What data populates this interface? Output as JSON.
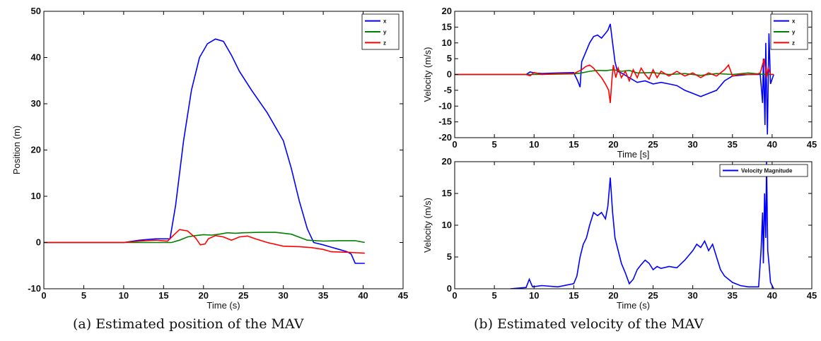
{
  "captions": {
    "a": "(a) Estimated position of the MAV",
    "b": "(b) Estimated velocity of the MAV"
  },
  "colors": {
    "x": "#0000ff",
    "y": "#008000",
    "z": "#ff0000",
    "magnitude": "#0000ff"
  },
  "chart_data": [
    {
      "id": "position",
      "type": "line",
      "xlabel": "Time (s)",
      "ylabel": "Position (m)",
      "xlim": [
        0,
        45
      ],
      "ylim": [
        -10,
        50
      ],
      "xticks": [
        0,
        5,
        10,
        15,
        20,
        25,
        30,
        35,
        40,
        45
      ],
      "yticks": [
        -10,
        0,
        10,
        20,
        30,
        40,
        50
      ],
      "legend": "top-right",
      "grid": false,
      "series": [
        {
          "name": "x",
          "color": "#0000ff",
          "points": [
            [
              0,
              0
            ],
            [
              10,
              0
            ],
            [
              12,
              0.5
            ],
            [
              14,
              0.8
            ],
            [
              15.8,
              0.8
            ],
            [
              16.5,
              8
            ],
            [
              17.5,
              22
            ],
            [
              18.5,
              33
            ],
            [
              19.5,
              40
            ],
            [
              20.5,
              43
            ],
            [
              21.5,
              44
            ],
            [
              22.5,
              43.5
            ],
            [
              23.5,
              40.5
            ],
            [
              24.5,
              37
            ],
            [
              26,
              33
            ],
            [
              28,
              28
            ],
            [
              30,
              22
            ],
            [
              31,
              16
            ],
            [
              32,
              9
            ],
            [
              33,
              3
            ],
            [
              33.8,
              0
            ],
            [
              35,
              -0.5
            ],
            [
              36,
              -1
            ],
            [
              37,
              -1.5
            ],
            [
              38,
              -2
            ],
            [
              38.5,
              -2.5
            ],
            [
              39,
              -4.5
            ],
            [
              40.2,
              -4.5
            ]
          ]
        },
        {
          "name": "y",
          "color": "#008000",
          "points": [
            [
              0,
              0
            ],
            [
              10,
              0
            ],
            [
              16,
              0
            ],
            [
              17,
              0.5
            ],
            [
              18,
              1.2
            ],
            [
              19,
              1.5
            ],
            [
              20,
              1.7
            ],
            [
              21,
              1.6
            ],
            [
              22,
              1.8
            ],
            [
              23,
              2.1
            ],
            [
              24,
              2
            ],
            [
              25,
              2.1
            ],
            [
              27,
              2.2
            ],
            [
              29,
              2.2
            ],
            [
              31,
              1.8
            ],
            [
              33,
              0.5
            ],
            [
              35,
              0.3
            ],
            [
              37,
              0.4
            ],
            [
              39,
              0.4
            ],
            [
              40.2,
              0
            ]
          ]
        },
        {
          "name": "z",
          "color": "#ff0000",
          "points": [
            [
              0,
              0
            ],
            [
              10,
              0
            ],
            [
              12,
              0.3
            ],
            [
              14,
              0.5
            ],
            [
              15.5,
              0.3
            ],
            [
              16.2,
              1.5
            ],
            [
              17,
              2.8
            ],
            [
              18,
              2.5
            ],
            [
              19,
              1
            ],
            [
              19.6,
              -0.5
            ],
            [
              20.2,
              -0.3
            ],
            [
              20.6,
              0.8
            ],
            [
              21.5,
              1.5
            ],
            [
              22.5,
              1.2
            ],
            [
              23.5,
              0.5
            ],
            [
              24.5,
              1.2
            ],
            [
              25.5,
              1.4
            ],
            [
              26.5,
              0.8
            ],
            [
              28,
              0
            ],
            [
              30,
              -0.8
            ],
            [
              32,
              -0.9
            ],
            [
              33.5,
              -1.1
            ],
            [
              35,
              -1.5
            ],
            [
              36,
              -2
            ],
            [
              38,
              -2.1
            ],
            [
              40.2,
              -2.3
            ]
          ]
        }
      ]
    },
    {
      "id": "velocity",
      "type": "line",
      "xlabel": "Time [s]",
      "ylabel": "Velocity (m/s)",
      "xlim": [
        0,
        45
      ],
      "ylim": [
        -20,
        20
      ],
      "xticks": [
        0,
        5,
        10,
        15,
        20,
        25,
        30,
        35,
        40,
        45
      ],
      "yticks": [
        -20,
        -15,
        -10,
        -5,
        0,
        5,
        10,
        15,
        20
      ],
      "legend": "top-right",
      "grid": false,
      "series": [
        {
          "name": "x",
          "color": "#0000ff",
          "points": [
            [
              0,
              0
            ],
            [
              9,
              0
            ],
            [
              9.5,
              0.8
            ],
            [
              10,
              0.5
            ],
            [
              11,
              0.3
            ],
            [
              13,
              0.5
            ],
            [
              15,
              0.6
            ],
            [
              15.5,
              -2
            ],
            [
              15.8,
              -4
            ],
            [
              16,
              4
            ],
            [
              17,
              10
            ],
            [
              17.5,
              12
            ],
            [
              18,
              12.5
            ],
            [
              18.5,
              11.5
            ],
            [
              19,
              13
            ],
            [
              19.3,
              14
            ],
            [
              19.6,
              16
            ],
            [
              19.9,
              10
            ],
            [
              20.2,
              4
            ],
            [
              20.5,
              1
            ],
            [
              21,
              0.5
            ],
            [
              22,
              -1
            ],
            [
              23,
              -2.5
            ],
            [
              24,
              -2
            ],
            [
              25,
              -3
            ],
            [
              26,
              -2.5
            ],
            [
              27,
              -3
            ],
            [
              28,
              -3.5
            ],
            [
              29,
              -5
            ],
            [
              30,
              -6
            ],
            [
              31,
              -7
            ],
            [
              32,
              -6
            ],
            [
              33,
              -5
            ],
            [
              34,
              -2
            ],
            [
              35,
              -0.5
            ],
            [
              37,
              0
            ],
            [
              38.5,
              0
            ],
            [
              38.8,
              -9
            ],
            [
              38.9,
              5
            ],
            [
              39.1,
              -16
            ],
            [
              39.2,
              10
            ],
            [
              39.4,
              -19
            ],
            [
              39.6,
              13
            ],
            [
              39.8,
              -3
            ],
            [
              40.2,
              0
            ]
          ]
        },
        {
          "name": "y",
          "color": "#008000",
          "points": [
            [
              0,
              0
            ],
            [
              10,
              0
            ],
            [
              15,
              0.2
            ],
            [
              16,
              0.5
            ],
            [
              17,
              1
            ],
            [
              18,
              1.3
            ],
            [
              19,
              1.2
            ],
            [
              20,
              1.5
            ],
            [
              21,
              1
            ],
            [
              22,
              1.3
            ],
            [
              23,
              0.5
            ],
            [
              25,
              0.6
            ],
            [
              27,
              0
            ],
            [
              29,
              0.3
            ],
            [
              31,
              -0.3
            ],
            [
              33,
              0.3
            ],
            [
              35,
              0
            ],
            [
              37,
              0.5
            ],
            [
              39,
              0
            ],
            [
              40.2,
              0
            ]
          ]
        },
        {
          "name": "z",
          "color": "#ff0000",
          "points": [
            [
              0,
              0
            ],
            [
              9,
              0
            ],
            [
              9.5,
              -0.4
            ],
            [
              10,
              0.6
            ],
            [
              11,
              0
            ],
            [
              13,
              0.3
            ],
            [
              15,
              0.3
            ],
            [
              16,
              1.5
            ],
            [
              16.5,
              2.5
            ],
            [
              17,
              3
            ],
            [
              17.5,
              2
            ],
            [
              18,
              0.5
            ],
            [
              18.5,
              -1
            ],
            [
              19,
              -3
            ],
            [
              19.4,
              -5
            ],
            [
              19.6,
              -9
            ],
            [
              19.8,
              -2
            ],
            [
              20,
              3
            ],
            [
              20.3,
              -1
            ],
            [
              20.6,
              2
            ],
            [
              21,
              -1
            ],
            [
              21.5,
              1
            ],
            [
              22,
              -2
            ],
            [
              22.5,
              1.5
            ],
            [
              23,
              -1
            ],
            [
              23.5,
              2
            ],
            [
              24,
              0
            ],
            [
              24.5,
              -1.5
            ],
            [
              25,
              1.5
            ],
            [
              25.5,
              -1
            ],
            [
              26,
              1
            ],
            [
              27,
              -0.5
            ],
            [
              28,
              1
            ],
            [
              29,
              -0.5
            ],
            [
              30,
              0.5
            ],
            [
              31,
              -1
            ],
            [
              32,
              0.5
            ],
            [
              33,
              -0.5
            ],
            [
              34,
              1.5
            ],
            [
              34.5,
              3
            ],
            [
              35,
              -0.5
            ],
            [
              36,
              0
            ],
            [
              38,
              0
            ],
            [
              38.5,
              0.5
            ],
            [
              39,
              5
            ],
            [
              39.3,
              -1
            ],
            [
              39.5,
              2
            ],
            [
              39.8,
              0
            ],
            [
              40.2,
              0
            ]
          ]
        }
      ]
    },
    {
      "id": "velocity-magnitude",
      "type": "line",
      "xlabel": "Time (s)",
      "ylabel": "Velocity (m/s)",
      "xlim": [
        0,
        45
      ],
      "ylim": [
        0,
        20
      ],
      "xticks": [
        0,
        5,
        10,
        15,
        20,
        25,
        30,
        35,
        40,
        45
      ],
      "yticks": [
        0,
        5,
        10,
        15,
        20
      ],
      "legend": "top-right",
      "grid": false,
      "series": [
        {
          "name": "Velocity Magnitude",
          "color": "#0000ff",
          "points": [
            [
              7,
              0
            ],
            [
              9,
              0.2
            ],
            [
              9.4,
              1.5
            ],
            [
              9.8,
              0.3
            ],
            [
              11,
              0.5
            ],
            [
              13,
              0.3
            ],
            [
              15,
              0.8
            ],
            [
              15.4,
              2
            ],
            [
              15.8,
              5
            ],
            [
              16.2,
              7
            ],
            [
              16.6,
              8
            ],
            [
              17,
              10
            ],
            [
              17.5,
              12
            ],
            [
              18,
              11.5
            ],
            [
              18.5,
              12
            ],
            [
              19,
              11
            ],
            [
              19.3,
              13
            ],
            [
              19.6,
              17.5
            ],
            [
              19.9,
              12
            ],
            [
              20.2,
              8
            ],
            [
              20.6,
              6
            ],
            [
              21,
              4
            ],
            [
              21.5,
              2.5
            ],
            [
              22,
              0.8
            ],
            [
              22.5,
              1.5
            ],
            [
              23,
              3
            ],
            [
              23.5,
              3.8
            ],
            [
              24,
              4.5
            ],
            [
              24.5,
              4
            ],
            [
              25,
              3
            ],
            [
              25.5,
              3.5
            ],
            [
              26,
              3.2
            ],
            [
              27,
              3.5
            ],
            [
              28,
              3.3
            ],
            [
              29,
              4.5
            ],
            [
              30,
              6
            ],
            [
              30.5,
              7
            ],
            [
              31,
              6.5
            ],
            [
              31.5,
              7.5
            ],
            [
              32,
              6
            ],
            [
              32.5,
              7
            ],
            [
              33,
              5
            ],
            [
              33.5,
              3
            ],
            [
              34,
              2
            ],
            [
              35,
              1
            ],
            [
              36,
              0.5
            ],
            [
              37,
              0.3
            ],
            [
              38.3,
              0.3
            ],
            [
              38.6,
              6
            ],
            [
              38.8,
              12
            ],
            [
              38.9,
              4
            ],
            [
              39.05,
              15
            ],
            [
              39.2,
              8
            ],
            [
              39.3,
              20
            ],
            [
              39.45,
              6
            ],
            [
              39.6,
              4
            ],
            [
              39.8,
              1
            ],
            [
              40.2,
              0
            ]
          ]
        }
      ]
    }
  ]
}
